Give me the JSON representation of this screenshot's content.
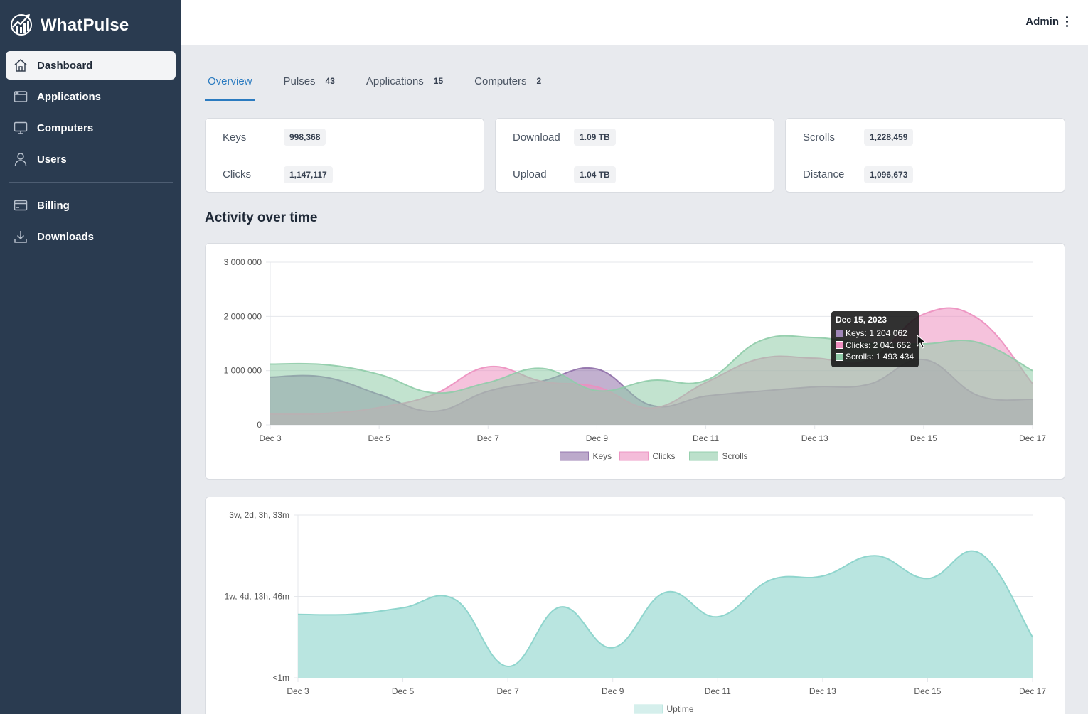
{
  "brand": {
    "name": "WhatPulse"
  },
  "sidebar": {
    "items": [
      {
        "label": "Dashboard",
        "icon": "home-icon",
        "active": true
      },
      {
        "label": "Applications",
        "icon": "window-icon",
        "active": false
      },
      {
        "label": "Computers",
        "icon": "monitor-icon",
        "active": false
      },
      {
        "label": "Users",
        "icon": "user-icon",
        "active": false
      },
      {
        "label": "Billing",
        "icon": "credit-card-icon",
        "active": false
      },
      {
        "label": "Downloads",
        "icon": "download-icon",
        "active": false
      }
    ]
  },
  "header": {
    "user": "Admin"
  },
  "tabs": [
    {
      "label": "Overview",
      "count": "",
      "active": true
    },
    {
      "label": "Pulses",
      "count": "43",
      "active": false
    },
    {
      "label": "Applications",
      "count": "15",
      "active": false
    },
    {
      "label": "Computers",
      "count": "2",
      "active": false
    }
  ],
  "stats": [
    {
      "label1": "Keys",
      "value1": "998,368",
      "label2": "Clicks",
      "value2": "1,147,117"
    },
    {
      "label1": "Download",
      "value1": "1.09 TB",
      "label2": "Upload",
      "value2": "1.04 TB"
    },
    {
      "label1": "Scrolls",
      "value1": "1,228,459",
      "label2": "Distance",
      "value2": "1,096,673"
    }
  ],
  "section_title": "Activity over time",
  "tooltip": {
    "title": "Dec 15, 2023",
    "rows": [
      "Keys: 1 204 062",
      "Clicks: 2 041 652",
      "Scrolls: 1 493 434"
    ]
  },
  "colors": {
    "keys": "#8f6fa8",
    "clicks": "#ec8fbf",
    "scrolls": "#8fcca8",
    "uptime": "#b9e5e0",
    "uptime_line": "#8fd5cd",
    "accent": "#2b7bc0",
    "sidebar": "#2a3b50"
  },
  "chart_data": [
    {
      "type": "area",
      "title": "",
      "x": [
        "Dec 3",
        "Dec 4",
        "Dec 5",
        "Dec 6",
        "Dec 7",
        "Dec 8",
        "Dec 9",
        "Dec 10",
        "Dec 11",
        "Dec 12",
        "Dec 13",
        "Dec 14",
        "Dec 15",
        "Dec 16",
        "Dec 17"
      ],
      "x_tick_labels": [
        "Dec 3",
        "Dec 5",
        "Dec 7",
        "Dec 9",
        "Dec 11",
        "Dec 13",
        "Dec 15",
        "Dec 17"
      ],
      "y_tick_labels": [
        "0",
        "1 000 000",
        "2 000 000",
        "3 000 000"
      ],
      "ylim": [
        0,
        3000000
      ],
      "grid": true,
      "legend": "bottom",
      "series": [
        {
          "name": "Keys",
          "values": [
            880000,
            880000,
            560000,
            250000,
            620000,
            810000,
            1030000,
            360000,
            530000,
            620000,
            700000,
            750000,
            1204062,
            540000,
            470000
          ]
        },
        {
          "name": "Clicks",
          "values": [
            200000,
            210000,
            320000,
            560000,
            1070000,
            800000,
            700000,
            310000,
            780000,
            1220000,
            1230000,
            1200000,
            2041652,
            1960000,
            760000
          ]
        },
        {
          "name": "Scrolls",
          "values": [
            1120000,
            1110000,
            930000,
            590000,
            780000,
            1040000,
            630000,
            820000,
            820000,
            1550000,
            1610000,
            1500000,
            1493434,
            1520000,
            1000000
          ]
        }
      ]
    },
    {
      "type": "area",
      "title": "",
      "x": [
        "Dec 3",
        "Dec 4",
        "Dec 5",
        "Dec 6",
        "Dec 7",
        "Dec 8",
        "Dec 9",
        "Dec 10",
        "Dec 11",
        "Dec 12",
        "Dec 13",
        "Dec 14",
        "Dec 15",
        "Dec 16",
        "Dec 17"
      ],
      "x_tick_labels": [
        "Dec 3",
        "Dec 5",
        "Dec 7",
        "Dec 9",
        "Dec 11",
        "Dec 13",
        "Dec 15",
        "Dec 17"
      ],
      "y_tick_labels": [
        "<1m",
        "1w, 4d, 13h, 46m",
        "3w, 2d, 3h, 33m"
      ],
      "ylim": [
        0,
        2
      ],
      "grid": true,
      "legend": "bottom",
      "series": [
        {
          "name": "Uptime",
          "values": [
            0.78,
            0.78,
            0.86,
            0.96,
            0.14,
            0.87,
            0.37,
            1.05,
            0.75,
            1.2,
            1.25,
            1.5,
            1.22,
            1.53,
            0.5
          ]
        }
      ]
    }
  ]
}
